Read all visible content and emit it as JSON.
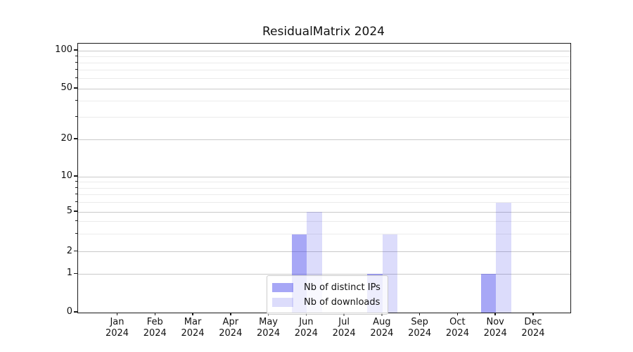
{
  "title": "ResidualMatrix 2024",
  "chart_data": {
    "type": "bar",
    "title": "ResidualMatrix 2024",
    "categories": [
      {
        "month": "Jan",
        "year": "2024"
      },
      {
        "month": "Feb",
        "year": "2024"
      },
      {
        "month": "Mar",
        "year": "2024"
      },
      {
        "month": "Apr",
        "year": "2024"
      },
      {
        "month": "May",
        "year": "2024"
      },
      {
        "month": "Jun",
        "year": "2024"
      },
      {
        "month": "Jul",
        "year": "2024"
      },
      {
        "month": "Aug",
        "year": "2024"
      },
      {
        "month": "Sep",
        "year": "2024"
      },
      {
        "month": "Oct",
        "year": "2024"
      },
      {
        "month": "Nov",
        "year": "2024"
      },
      {
        "month": "Dec",
        "year": "2024"
      }
    ],
    "series": [
      {
        "name": "Nb of distinct IPs",
        "color": "rgba(60,60,235,0.45)",
        "values": [
          0,
          0,
          0,
          0,
          0,
          3,
          0,
          1,
          0,
          0,
          1,
          0
        ]
      },
      {
        "name": "Nb of downloads",
        "color": "rgba(60,60,235,0.18)",
        "values": [
          0,
          0,
          0,
          0,
          0,
          5,
          0,
          3,
          0,
          0,
          6,
          0
        ]
      }
    ],
    "y_axis": {
      "scale": "symlog",
      "major_ticks": [
        0,
        1,
        2,
        5,
        10,
        20,
        50,
        100
      ],
      "tick_labels": [
        "0",
        "1",
        "2",
        "5",
        "10",
        "20",
        "50",
        "100"
      ],
      "minor_ticks": [
        3,
        4,
        6,
        7,
        8,
        9,
        30,
        40,
        60,
        70,
        80,
        90
      ],
      "range": [
        0,
        112
      ]
    },
    "legend": {
      "position": "lower-center",
      "entries": [
        "Nb of distinct IPs",
        "Nb of downloads"
      ]
    },
    "grid": true
  },
  "colors": {
    "series_ips": "rgba(60,60,235,0.45)",
    "series_downloads": "rgba(60,60,235,0.18)",
    "grid_major": "#c9c9c9",
    "grid_minor": "#ebebeb",
    "spine": "#1a1a1a",
    "legend_border": "#cccccc",
    "legend_bg": "rgba(255,255,255,0.8)",
    "text": "#111111"
  }
}
